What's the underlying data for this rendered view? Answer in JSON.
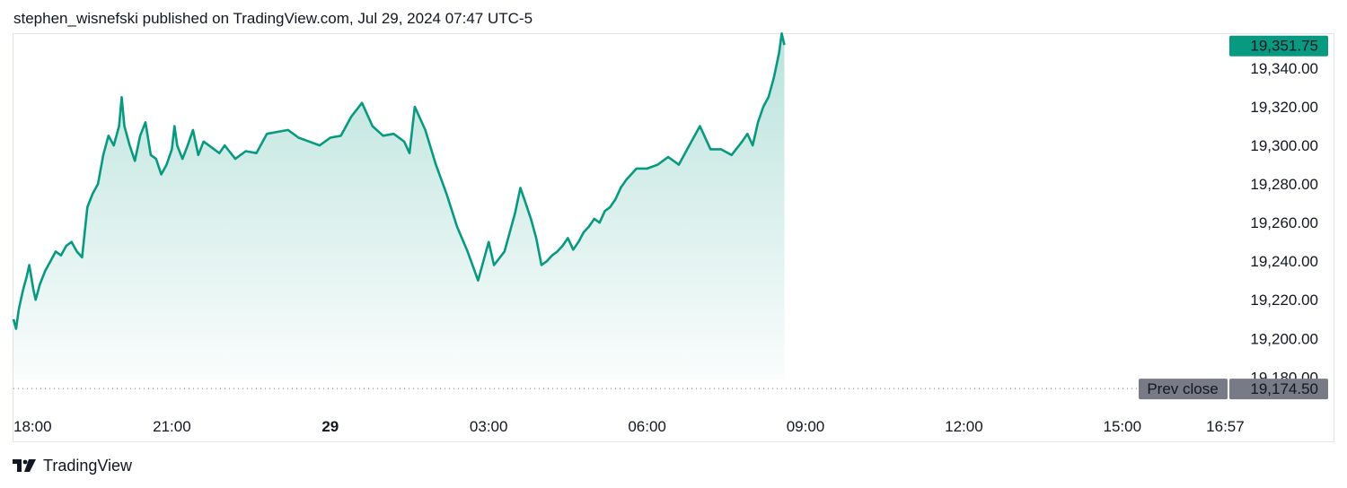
{
  "header": {
    "text": "stephen_wisnefski published on TradingView.com, Jul 29, 2024 07:47 UTC-5"
  },
  "footer": {
    "brand": "TradingView",
    "logo_icon": "tradingview-logo-icon"
  },
  "colors": {
    "line": "#089981",
    "fill_top": "#089981",
    "label_bg": "#089981",
    "prev_close_bg": "#787b86",
    "text": "#131722"
  },
  "chart_data": {
    "type": "area",
    "ylim": [
      19174,
      19360
    ],
    "grid": false,
    "last_price_label": "19,351.75",
    "last_price": 19351.75,
    "prev_close": {
      "label": "Prev close",
      "value_label": "19,174.50",
      "value": 19174.5
    },
    "y_ticks": [
      {
        "value": 19340,
        "label": "19,340.00"
      },
      {
        "value": 19320,
        "label": "19,320.00"
      },
      {
        "value": 19300,
        "label": "19,300.00"
      },
      {
        "value": 19280,
        "label": "19,280.00"
      },
      {
        "value": 19260,
        "label": "19,260.00"
      },
      {
        "value": 19240,
        "label": "19,240.00"
      },
      {
        "value": 19220,
        "label": "19,220.00"
      },
      {
        "value": 19200,
        "label": "19,200.00"
      },
      {
        "value": 19180,
        "label": "19,180.00"
      }
    ],
    "x_ticks": [
      {
        "hour": 0,
        "label": "18:00",
        "bold": false
      },
      {
        "hour": 3,
        "label": "21:00",
        "bold": false
      },
      {
        "hour": 6,
        "label": "29",
        "bold": true
      },
      {
        "hour": 9,
        "label": "03:00",
        "bold": false
      },
      {
        "hour": 12,
        "label": "06:00",
        "bold": false
      },
      {
        "hour": 15,
        "label": "09:00",
        "bold": false
      },
      {
        "hour": 18,
        "label": "12:00",
        "bold": false
      },
      {
        "hour": 21,
        "label": "15:00",
        "bold": false
      },
      {
        "hour": 22.95,
        "label": "16:57",
        "bold": false
      }
    ],
    "series": [
      {
        "x_hours": [
          0,
          0.05,
          0.1,
          0.18,
          0.25,
          0.3,
          0.38,
          0.42,
          0.5,
          0.6,
          0.7,
          0.8,
          0.9,
          1.0,
          1.1,
          1.2,
          1.3,
          1.4,
          1.5,
          1.6,
          1.7,
          1.8,
          1.9,
          2.0,
          2.05,
          2.1,
          2.2,
          2.3,
          2.4,
          2.5,
          2.6,
          2.7,
          2.8,
          2.9,
          3.0,
          3.05,
          3.1,
          3.2,
          3.3,
          3.4,
          3.5,
          3.6,
          3.7,
          3.8,
          3.9,
          4.0,
          4.2,
          4.4,
          4.6,
          4.8,
          5.0,
          5.2,
          5.4,
          5.6,
          5.8,
          6.0,
          6.2,
          6.4,
          6.6,
          6.8,
          7.0,
          7.2,
          7.4,
          7.5,
          7.6,
          7.8,
          8.0,
          8.2,
          8.4,
          8.6,
          8.8,
          9.0,
          9.1,
          9.3,
          9.5,
          9.6,
          9.7,
          9.8,
          9.9,
          10.0,
          10.1,
          10.2,
          10.3,
          10.4,
          10.5,
          10.6,
          10.7,
          10.8,
          10.9,
          11.0,
          11.1,
          11.2,
          11.3,
          11.4,
          11.5,
          11.6,
          11.8,
          12.0,
          12.2,
          12.4,
          12.6,
          12.8,
          13.0,
          13.2,
          13.4,
          13.6,
          13.8,
          13.9,
          14.0,
          14.1,
          14.2,
          14.3,
          14.4,
          14.5,
          14.55,
          14.6
        ],
        "values": [
          19210,
          19205,
          19215,
          19225,
          19232,
          19238,
          19225,
          19220,
          19228,
          19235,
          19240,
          19245,
          19243,
          19248,
          19250,
          19245,
          19242,
          19268,
          19275,
          19280,
          19295,
          19305,
          19300,
          19310,
          19325,
          19310,
          19300,
          19292,
          19305,
          19312,
          19295,
          19293,
          19285,
          19290,
          19298,
          19310,
          19300,
          19293,
          19300,
          19308,
          19295,
          19302,
          19300,
          19298,
          19296,
          19300,
          19293,
          19297,
          19296,
          19306,
          19307,
          19308,
          19304,
          19302,
          19300,
          19304,
          19305,
          19315,
          19322,
          19310,
          19305,
          19306,
          19302,
          19296,
          19320,
          19308,
          19290,
          19275,
          19258,
          19245,
          19230,
          19250,
          19238,
          19245,
          19265,
          19278,
          19270,
          19262,
          19252,
          19238,
          19240,
          19243,
          19245,
          19248,
          19252,
          19246,
          19250,
          19255,
          19258,
          19262,
          19260,
          19266,
          19268,
          19272,
          19278,
          19282,
          19288,
          19288,
          19290,
          19294,
          19290,
          19300,
          19310,
          19298,
          19298,
          19295,
          19302,
          19306,
          19300,
          19312,
          19320,
          19325,
          19335,
          19348,
          19358,
          19352
        ]
      }
    ]
  }
}
